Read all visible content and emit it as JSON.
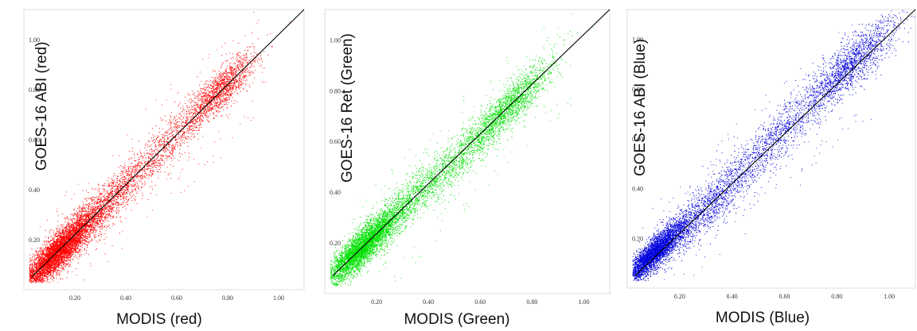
{
  "chart_data": [
    {
      "type": "scatter",
      "xlabel": "MODIS (red)",
      "ylabel": "GOES-16 ABI (red)",
      "title": "",
      "color": "#ff0000",
      "xlim": [
        0.0,
        1.1
      ],
      "ylim": [
        0.0,
        1.12
      ],
      "xticks": [
        0.2,
        0.4,
        0.6,
        0.8,
        1.0
      ],
      "xtick_labels": [
        "0.20",
        "0.40",
        "0.60",
        "0.80",
        "1.00"
      ],
      "yticks": [
        0.2,
        0.4,
        0.6,
        0.8,
        1.0
      ],
      "ytick_labels": [
        "0.20",
        "0.40",
        "0.60",
        "0.80",
        "1.00"
      ],
      "fit_line": {
        "x": [
          0.03,
          1.1
        ],
        "y": [
          0.05,
          1.12
        ]
      },
      "clusters": [
        {
          "cx": 0.13,
          "cy": 0.15,
          "sx": 0.07,
          "sy": 0.06,
          "n": 5200
        },
        {
          "cx": 0.3,
          "cy": 0.32,
          "sx": 0.09,
          "sy": 0.08,
          "n": 1500
        },
        {
          "cx": 0.55,
          "cy": 0.57,
          "sx": 0.1,
          "sy": 0.08,
          "n": 900
        },
        {
          "cx": 0.77,
          "cy": 0.8,
          "sx": 0.07,
          "sy": 0.07,
          "n": 1400
        }
      ],
      "grid": false
    },
    {
      "type": "scatter",
      "xlabel": "MODIS (Green)",
      "ylabel": "GOES-16 Ret  (Green)",
      "title": "",
      "color": "#00e000",
      "xlim": [
        0.0,
        1.1
      ],
      "ylim": [
        0.0,
        1.12
      ],
      "xticks": [
        0.2,
        0.4,
        0.6,
        0.8,
        1.0
      ],
      "xtick_labels": [
        "0.20",
        "0.40",
        "0.60",
        "0.80",
        "1.00"
      ],
      "yticks": [
        0.2,
        0.4,
        0.6,
        0.8,
        1.0
      ],
      "ytick_labels": [
        "0.20",
        "0.40",
        "0.60",
        "0.80",
        "1.00"
      ],
      "fit_line": {
        "x": [
          0.03,
          1.1
        ],
        "y": [
          0.07,
          1.12
        ]
      },
      "clusters": [
        {
          "cx": 0.14,
          "cy": 0.18,
          "sx": 0.07,
          "sy": 0.06,
          "n": 4200
        },
        {
          "cx": 0.32,
          "cy": 0.36,
          "sx": 0.09,
          "sy": 0.08,
          "n": 1300
        },
        {
          "cx": 0.55,
          "cy": 0.57,
          "sx": 0.09,
          "sy": 0.08,
          "n": 900
        },
        {
          "cx": 0.72,
          "cy": 0.75,
          "sx": 0.08,
          "sy": 0.07,
          "n": 1500
        }
      ],
      "grid": false
    },
    {
      "type": "scatter",
      "xlabel": "MODIS (Blue)",
      "ylabel": "GOES-16 ABI (Blue)",
      "title": "",
      "color": "#0000dd",
      "xlim": [
        0.0,
        1.1
      ],
      "ylim": [
        0.0,
        1.12
      ],
      "xticks": [
        0.2,
        0.4,
        0.6,
        0.8,
        1.0
      ],
      "xtick_labels": [
        "0.20",
        "0.40",
        "0.60",
        "0.80",
        "1.00"
      ],
      "yticks": [
        0.2,
        0.4,
        0.6,
        0.8,
        1.0
      ],
      "ytick_labels": [
        "0.20",
        "0.40",
        "0.60",
        "0.80",
        "1.00"
      ],
      "fit_line": {
        "x": [
          0.03,
          1.1
        ],
        "y": [
          0.05,
          1.12
        ]
      },
      "clusters": [
        {
          "cx": 0.1,
          "cy": 0.14,
          "sx": 0.06,
          "sy": 0.05,
          "n": 3800
        },
        {
          "cx": 0.3,
          "cy": 0.32,
          "sx": 0.1,
          "sy": 0.09,
          "n": 1400
        },
        {
          "cx": 0.58,
          "cy": 0.62,
          "sx": 0.1,
          "sy": 0.09,
          "n": 900
        },
        {
          "cx": 0.85,
          "cy": 0.9,
          "sx": 0.09,
          "sy": 0.09,
          "n": 1600
        }
      ],
      "grid": false
    }
  ]
}
